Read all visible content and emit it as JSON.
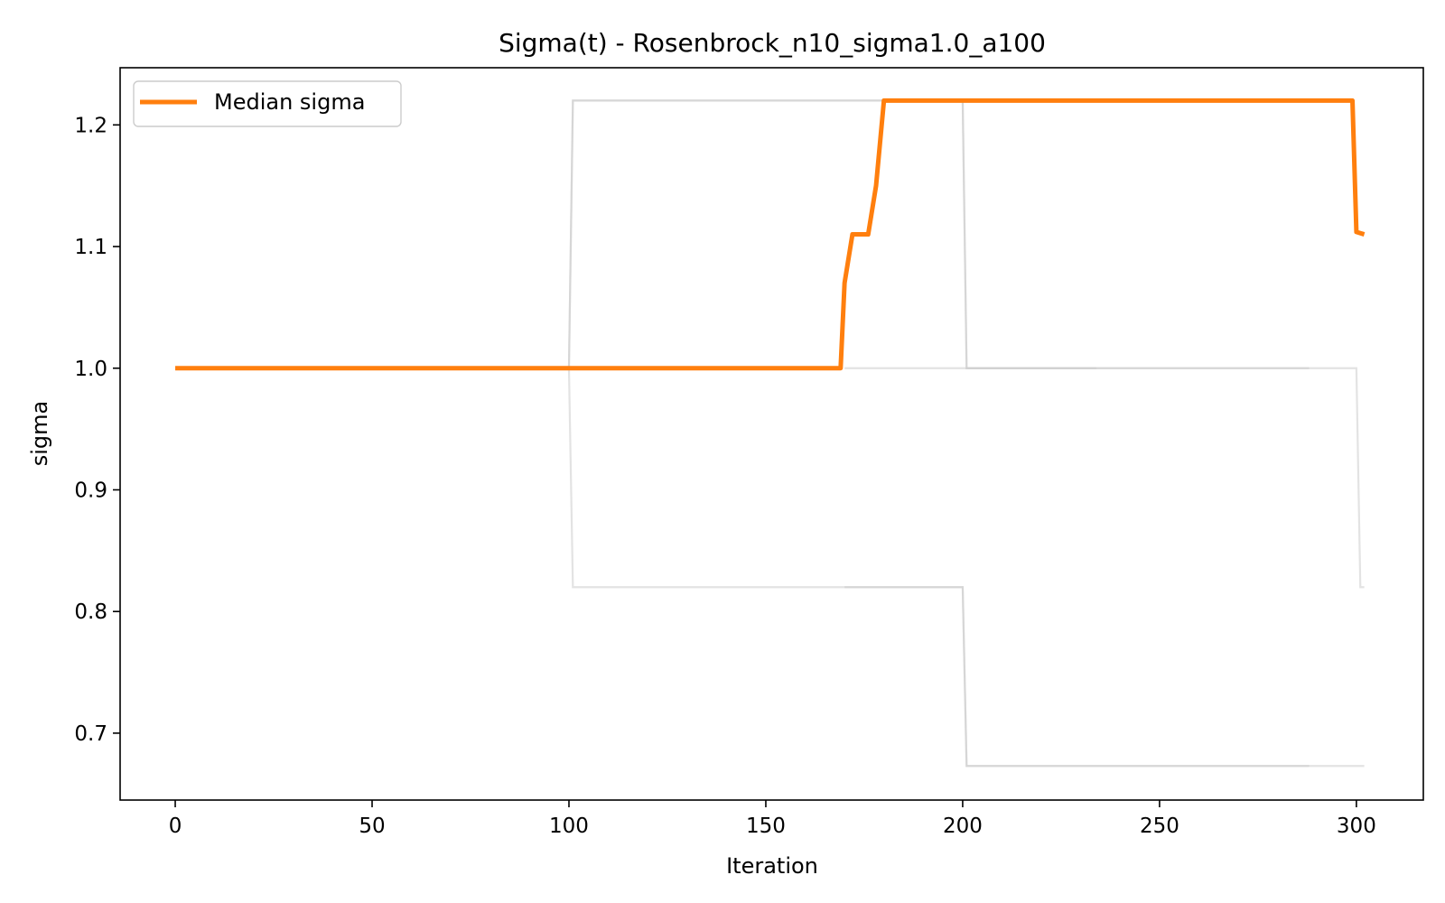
{
  "chart_data": {
    "type": "line",
    "title": "Sigma(t) - Rosenbrock_n10_sigma1.0_a100",
    "xlabel": "Iteration",
    "ylabel": "sigma",
    "xlim": [
      -14,
      317
    ],
    "ylim": [
      0.645,
      1.247
    ],
    "xticks": [
      0,
      50,
      100,
      150,
      200,
      250,
      300
    ],
    "xtick_labels": [
      "0",
      "50",
      "100",
      "150",
      "200",
      "250",
      "300"
    ],
    "yticks": [
      0.7,
      0.8,
      0.9,
      1.0,
      1.1,
      1.2
    ],
    "ytick_labels": [
      "0.7",
      "0.8",
      "0.9",
      "1.0",
      "1.1",
      "1.2"
    ],
    "grid": false,
    "legend": {
      "location": "upper-left",
      "entries": [
        "Median sigma"
      ]
    },
    "colors": {
      "median": "#ff7f0e",
      "runs": "#cccccc",
      "axes": "#000000"
    },
    "series": [
      {
        "role": "median",
        "name": "Median sigma",
        "x": [
          0,
          169,
          170,
          172,
          176,
          178,
          180,
          299,
          300,
          302
        ],
        "y": [
          1.0,
          1.0,
          1.07,
          1.11,
          1.11,
          1.15,
          1.22,
          1.22,
          1.112,
          1.11
        ]
      },
      {
        "role": "run",
        "x": [
          100,
          101,
          200,
          201,
          288
        ],
        "y": [
          1.0,
          1.22,
          1.22,
          1.0,
          1.0
        ]
      },
      {
        "role": "run",
        "x": [
          100,
          101,
          200,
          201,
          288
        ],
        "y": [
          1.0,
          0.82,
          0.82,
          0.673,
          0.673
        ]
      },
      {
        "role": "run",
        "x": [
          100,
          101,
          200,
          201,
          234
        ],
        "y": [
          1.0,
          1.22,
          1.22,
          1.0,
          1.0
        ]
      },
      {
        "role": "run",
        "x": [
          170,
          200,
          201,
          300,
          301,
          302
        ],
        "y": [
          0.82,
          0.82,
          0.673,
          0.673,
          0.673,
          0.673
        ]
      },
      {
        "role": "run",
        "x": [
          170,
          234,
          299,
          300,
          301,
          302
        ],
        "y": [
          1.0,
          1.0,
          1.0,
          1.0,
          0.82,
          0.82
        ]
      }
    ]
  }
}
